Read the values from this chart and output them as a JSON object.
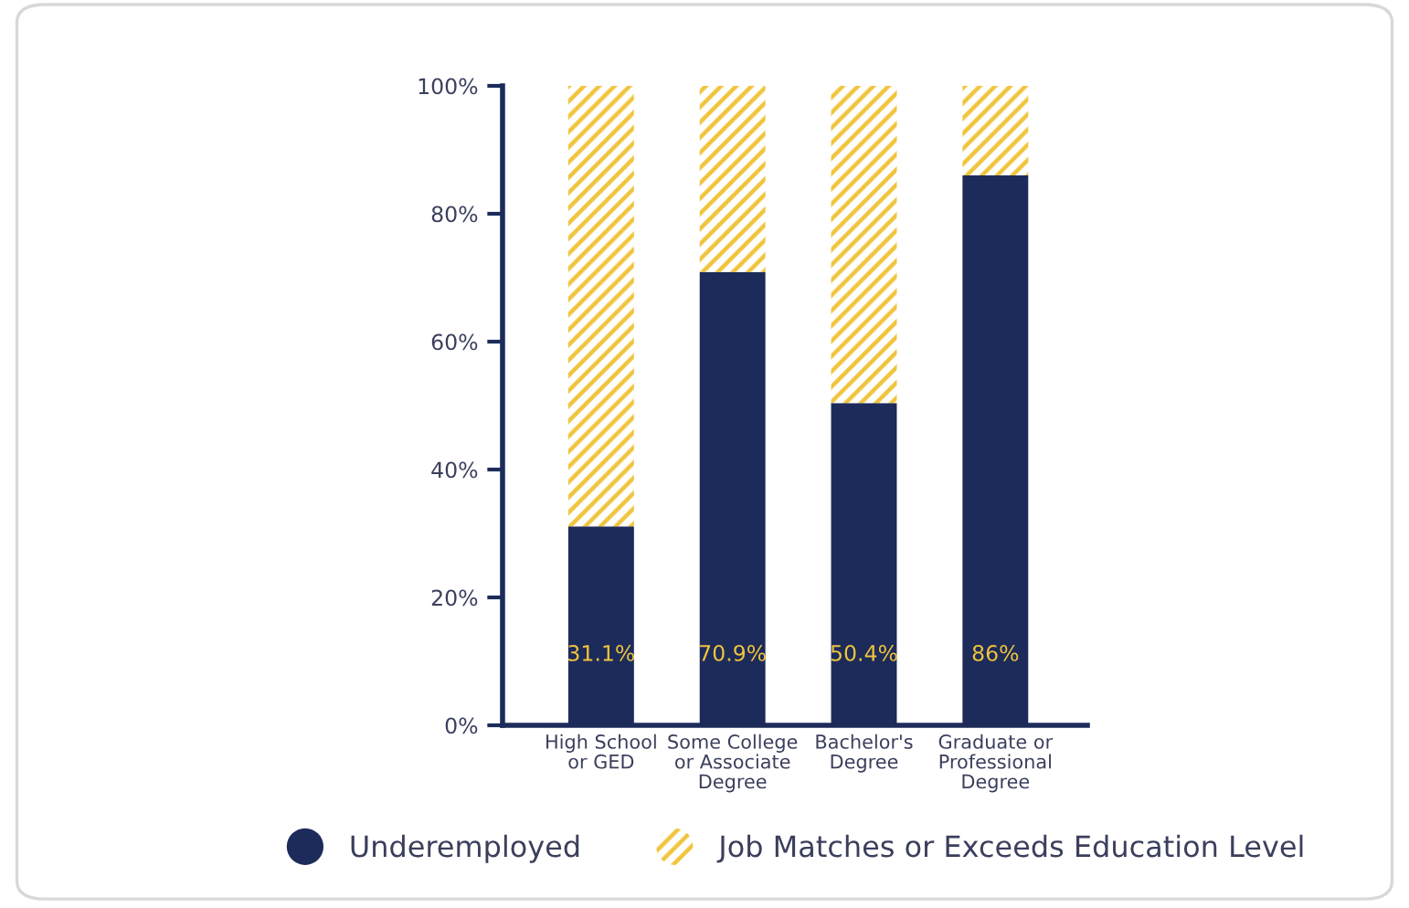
{
  "chart_data": {
    "type": "bar",
    "stacked": true,
    "categories": [
      "High School\nor GED",
      "Some College\nor Associate\nDegree",
      "Bachelor's\nDegree",
      "Graduate or\nProfessional\nDegree"
    ],
    "series": [
      {
        "name": "Underemployed",
        "color": "#1c2b5a",
        "values": [
          31.1,
          70.9,
          50.4,
          86
        ],
        "value_labels": [
          "31.1%",
          "70.9%",
          "50.4%",
          "86%"
        ]
      },
      {
        "name": "Job Matches or Exceeds Education Level",
        "color": "#f0c43c",
        "values": [
          68.9,
          29.1,
          49.6,
          14
        ]
      }
    ],
    "ylim": [
      0,
      100
    ],
    "yticks": [
      {
        "value": 0,
        "label": "0%"
      },
      {
        "value": 20,
        "label": "20%"
      },
      {
        "value": 40,
        "label": "40%"
      },
      {
        "value": 60,
        "label": "60%"
      },
      {
        "value": 80,
        "label": "80%"
      },
      {
        "value": 100,
        "label": "100%"
      }
    ],
    "grid": false,
    "legend": "bottom"
  }
}
